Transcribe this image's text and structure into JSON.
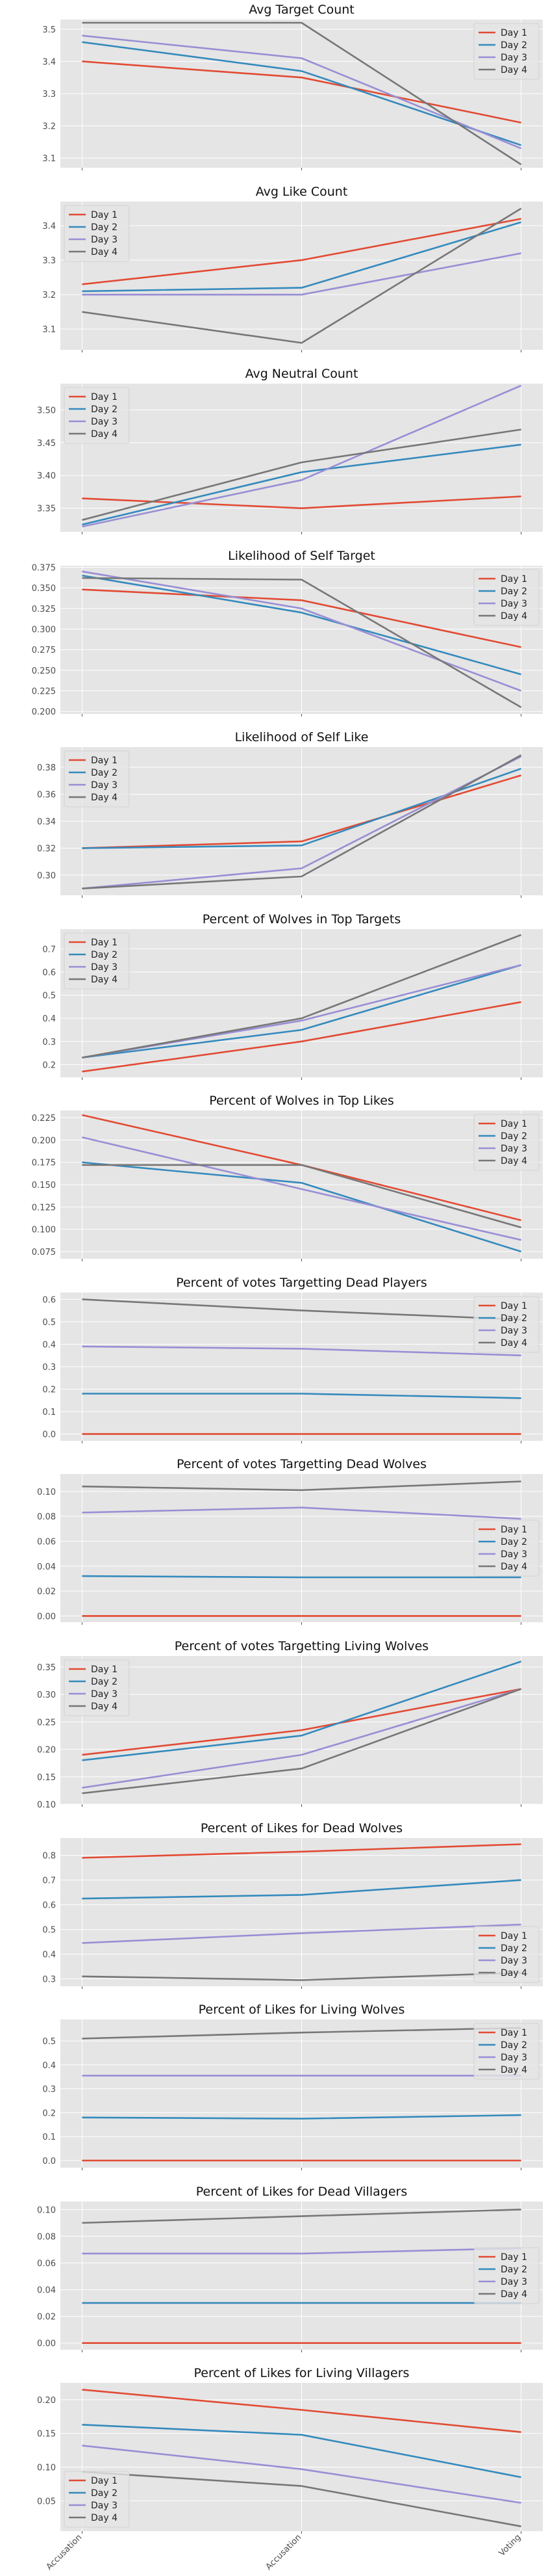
{
  "colors": {
    "series": [
      "#e24a33",
      "#348abd",
      "#988ed5",
      "#777777"
    ],
    "panel_background": "#e5e5e5",
    "grid": "#ffffff"
  },
  "chart_data": [
    {
      "type": "line",
      "title": "Avg Target Count",
      "categories": [
        "Accusation",
        "Accusation",
        "Voting"
      ],
      "yticks": [
        "3.1",
        "3.2",
        "3.3",
        "3.4",
        "3.5"
      ],
      "ylim": [
        3.07,
        3.53
      ],
      "legend": "upper right",
      "series": [
        {
          "name": "Day 1",
          "values": [
            3.4,
            3.35,
            3.21
          ]
        },
        {
          "name": "Day 2",
          "values": [
            3.46,
            3.37,
            3.14
          ]
        },
        {
          "name": "Day 3",
          "values": [
            3.48,
            3.41,
            3.13
          ]
        },
        {
          "name": "Day 4",
          "values": [
            3.52,
            3.52,
            3.08
          ]
        }
      ]
    },
    {
      "type": "line",
      "title": "Avg Like Count",
      "categories": [
        "Accusation",
        "Accusation",
        "Voting"
      ],
      "yticks": [
        "3.1",
        "3.2",
        "3.3",
        "3.4"
      ],
      "ylim": [
        3.04,
        3.47
      ],
      "legend": "upper left",
      "series": [
        {
          "name": "Day 1",
          "values": [
            3.23,
            3.3,
            3.42
          ]
        },
        {
          "name": "Day 2",
          "values": [
            3.21,
            3.22,
            3.41
          ]
        },
        {
          "name": "Day 3",
          "values": [
            3.2,
            3.2,
            3.32
          ]
        },
        {
          "name": "Day 4",
          "values": [
            3.15,
            3.06,
            3.45
          ]
        }
      ]
    },
    {
      "type": "line",
      "title": "Avg Neutral Count",
      "categories": [
        "Accusation",
        "Accusation",
        "Voting"
      ],
      "yticks": [
        "3.35",
        "3.40",
        "3.45",
        "3.50"
      ],
      "ylim": [
        3.314,
        3.54
      ],
      "legend": "upper left",
      "series": [
        {
          "name": "Day 1",
          "values": [
            3.365,
            3.35,
            3.368
          ]
        },
        {
          "name": "Day 2",
          "values": [
            3.325,
            3.405,
            3.447
          ]
        },
        {
          "name": "Day 3",
          "values": [
            3.322,
            3.393,
            3.537
          ]
        },
        {
          "name": "Day 4",
          "values": [
            3.332,
            3.42,
            3.47
          ]
        }
      ]
    },
    {
      "type": "line",
      "title": "Likelihood of Self Target",
      "categories": [
        "Accusation",
        "Accusation",
        "Voting"
      ],
      "yticks": [
        "0.200",
        "0.225",
        "0.250",
        "0.275",
        "0.300",
        "0.325",
        "0.350",
        "0.375"
      ],
      "ylim": [
        0.197,
        0.377
      ],
      "legend": "upper right",
      "series": [
        {
          "name": "Day 1",
          "values": [
            0.348,
            0.335,
            0.278
          ]
        },
        {
          "name": "Day 2",
          "values": [
            0.365,
            0.32,
            0.245
          ]
        },
        {
          "name": "Day 3",
          "values": [
            0.37,
            0.325,
            0.225
          ]
        },
        {
          "name": "Day 4",
          "values": [
            0.362,
            0.36,
            0.205
          ]
        }
      ]
    },
    {
      "type": "line",
      "title": "Likelihood of Self Like",
      "categories": [
        "Accusation",
        "Accusation",
        "Voting"
      ],
      "yticks": [
        "0.30",
        "0.32",
        "0.34",
        "0.36",
        "0.38"
      ],
      "ylim": [
        0.285,
        0.395
      ],
      "legend": "upper left",
      "series": [
        {
          "name": "Day 1",
          "values": [
            0.32,
            0.325,
            0.374
          ]
        },
        {
          "name": "Day 2",
          "values": [
            0.32,
            0.322,
            0.379
          ]
        },
        {
          "name": "Day 3",
          "values": [
            0.29,
            0.305,
            0.388
          ]
        },
        {
          "name": "Day 4",
          "values": [
            0.29,
            0.299,
            0.389
          ]
        }
      ]
    },
    {
      "type": "line",
      "title": "Percent of Wolves in Top Targets",
      "categories": [
        "Accusation",
        "Accusation",
        "Voting"
      ],
      "yticks": [
        "0.2",
        "0.3",
        "0.4",
        "0.5",
        "0.6",
        "0.7"
      ],
      "ylim": [
        0.145,
        0.785
      ],
      "legend": "upper left",
      "series": [
        {
          "name": "Day 1",
          "values": [
            0.17,
            0.3,
            0.47
          ]
        },
        {
          "name": "Day 2",
          "values": [
            0.23,
            0.35,
            0.63
          ]
        },
        {
          "name": "Day 3",
          "values": [
            0.23,
            0.39,
            0.63
          ]
        },
        {
          "name": "Day 4",
          "values": [
            0.23,
            0.4,
            0.76
          ]
        }
      ]
    },
    {
      "type": "line",
      "title": "Percent of Wolves in Top Likes",
      "categories": [
        "Accusation",
        "Accusation",
        "Voting"
      ],
      "yticks": [
        "0.075",
        "0.100",
        "0.125",
        "0.150",
        "0.175",
        "0.200",
        "0.225"
      ],
      "ylim": [
        0.067,
        0.233
      ],
      "legend": "upper right",
      "series": [
        {
          "name": "Day 1",
          "values": [
            0.228,
            0.172,
            0.11
          ]
        },
        {
          "name": "Day 2",
          "values": [
            0.175,
            0.152,
            0.075
          ]
        },
        {
          "name": "Day 3",
          "values": [
            0.203,
            0.145,
            0.088
          ]
        },
        {
          "name": "Day 4",
          "values": [
            0.172,
            0.172,
            0.102
          ]
        }
      ]
    },
    {
      "type": "line",
      "title": "Percent of votes Targetting Dead Players",
      "categories": [
        "Accusation",
        "Accusation",
        "Voting"
      ],
      "yticks": [
        "0.0",
        "0.1",
        "0.2",
        "0.3",
        "0.4",
        "0.5",
        "0.6"
      ],
      "ylim": [
        -0.03,
        0.63
      ],
      "legend": "upper right",
      "series": [
        {
          "name": "Day 1",
          "values": [
            0.0,
            0.0,
            0.0
          ]
        },
        {
          "name": "Day 2",
          "values": [
            0.18,
            0.18,
            0.16
          ]
        },
        {
          "name": "Day 3",
          "values": [
            0.39,
            0.38,
            0.35
          ]
        },
        {
          "name": "Day 4",
          "values": [
            0.6,
            0.55,
            0.51
          ]
        }
      ]
    },
    {
      "type": "line",
      "title": "Percent of votes Targetting Dead Wolves",
      "categories": [
        "Accusation",
        "Accusation",
        "Voting"
      ],
      "yticks": [
        "0.00",
        "0.02",
        "0.04",
        "0.06",
        "0.08",
        "0.10"
      ],
      "ylim": [
        -0.005,
        0.114
      ],
      "legend": "center right",
      "series": [
        {
          "name": "Day 1",
          "values": [
            0.0,
            0.0,
            0.0
          ]
        },
        {
          "name": "Day 2",
          "values": [
            0.032,
            0.031,
            0.031
          ]
        },
        {
          "name": "Day 3",
          "values": [
            0.083,
            0.087,
            0.078
          ]
        },
        {
          "name": "Day 4",
          "values": [
            0.104,
            0.101,
            0.108
          ]
        }
      ]
    },
    {
      "type": "line",
      "title": "Percent of votes Targetting Living Wolves",
      "categories": [
        "Accusation",
        "Accusation",
        "Voting"
      ],
      "yticks": [
        "0.10",
        "0.15",
        "0.20",
        "0.25",
        "0.30",
        "0.35"
      ],
      "ylim": [
        0.1,
        0.37
      ],
      "legend": "upper left",
      "series": [
        {
          "name": "Day 1",
          "values": [
            0.19,
            0.235,
            0.31
          ]
        },
        {
          "name": "Day 2",
          "values": [
            0.18,
            0.225,
            0.36
          ]
        },
        {
          "name": "Day 3",
          "values": [
            0.13,
            0.19,
            0.31
          ]
        },
        {
          "name": "Day 4",
          "values": [
            0.12,
            0.165,
            0.31
          ]
        }
      ]
    },
    {
      "type": "line",
      "title": "Percent of Likes for Dead Wolves",
      "categories": [
        "Accusation",
        "Accusation",
        "Voting"
      ],
      "yticks": [
        "0.3",
        "0.4",
        "0.5",
        "0.6",
        "0.7",
        "0.8"
      ],
      "ylim": [
        0.27,
        0.87
      ],
      "legend": "lower right",
      "series": [
        {
          "name": "Day 1",
          "values": [
            0.79,
            0.815,
            0.845
          ]
        },
        {
          "name": "Day 2",
          "values": [
            0.625,
            0.64,
            0.7
          ]
        },
        {
          "name": "Day 3",
          "values": [
            0.445,
            0.485,
            0.52
          ]
        },
        {
          "name": "Day 4",
          "values": [
            0.31,
            0.295,
            0.325
          ]
        }
      ]
    },
    {
      "type": "line",
      "title": "Percent of Likes for Living Wolves",
      "categories": [
        "Accusation",
        "Accusation",
        "Voting"
      ],
      "yticks": [
        "0.0",
        "0.1",
        "0.2",
        "0.3",
        "0.4",
        "0.5"
      ],
      "ylim": [
        -0.03,
        0.59
      ],
      "legend": "upper right",
      "series": [
        {
          "name": "Day 1",
          "values": [
            0.0,
            0.0,
            0.0
          ]
        },
        {
          "name": "Day 2",
          "values": [
            0.18,
            0.175,
            0.19
          ]
        },
        {
          "name": "Day 3",
          "values": [
            0.355,
            0.355,
            0.355
          ]
        },
        {
          "name": "Day 4",
          "values": [
            0.51,
            0.535,
            0.555
          ]
        }
      ]
    },
    {
      "type": "line",
      "title": "Percent of Likes for Dead Villagers",
      "categories": [
        "Accusation",
        "Accusation",
        "Voting"
      ],
      "yticks": [
        "0.00",
        "0.02",
        "0.04",
        "0.06",
        "0.08",
        "0.10"
      ],
      "ylim": [
        -0.005,
        0.106
      ],
      "legend": "center right",
      "series": [
        {
          "name": "Day 1",
          "values": [
            0.0,
            0.0,
            0.0
          ]
        },
        {
          "name": "Day 2",
          "values": [
            0.03,
            0.03,
            0.03
          ]
        },
        {
          "name": "Day 3",
          "values": [
            0.067,
            0.067,
            0.071
          ]
        },
        {
          "name": "Day 4",
          "values": [
            0.09,
            0.095,
            0.1
          ]
        }
      ]
    },
    {
      "type": "line",
      "title": "Percent of Likes for Living Villagers",
      "categories": [
        "Accusation",
        "Accusation",
        "Voting"
      ],
      "yticks": [
        "0.05",
        "0.10",
        "0.15",
        "0.20"
      ],
      "ylim": [
        0.005,
        0.225
      ],
      "legend": "lower left",
      "series": [
        {
          "name": "Day 1",
          "values": [
            0.215,
            0.185,
            0.152
          ]
        },
        {
          "name": "Day 2",
          "values": [
            0.163,
            0.148,
            0.085
          ]
        },
        {
          "name": "Day 3",
          "values": [
            0.132,
            0.097,
            0.047
          ]
        },
        {
          "name": "Day 4",
          "values": [
            0.093,
            0.072,
            0.012
          ]
        }
      ]
    }
  ]
}
